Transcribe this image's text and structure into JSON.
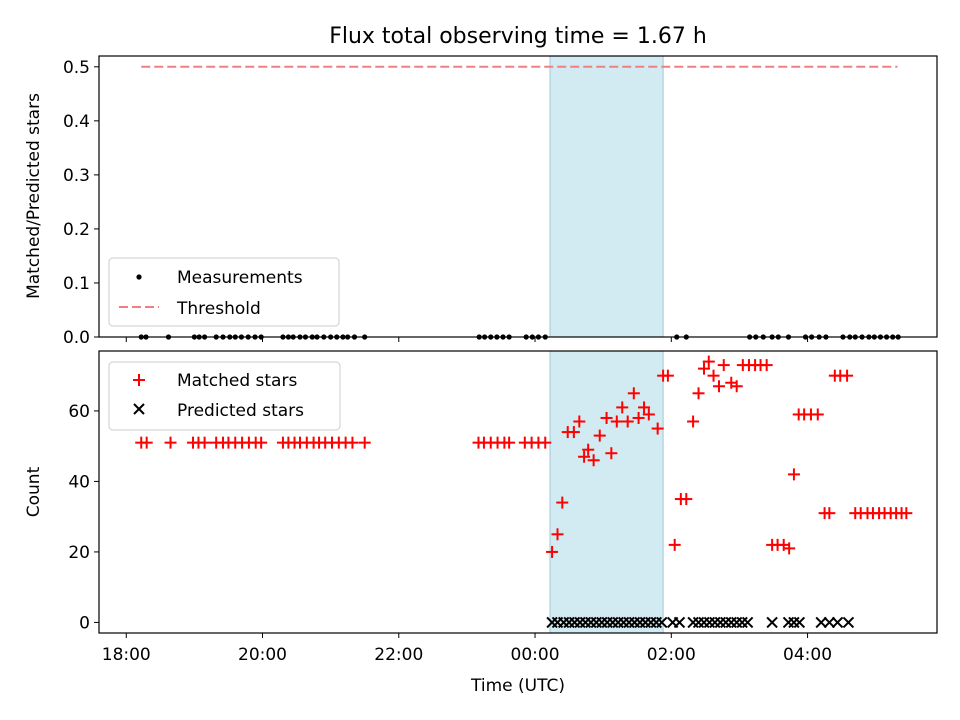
{
  "chart_data": {
    "type": "scatter",
    "title": "Flux total observing time = 1.67 h",
    "xlabel": "Time (UTC)",
    "x_unit": "hours since 18:00 UTC",
    "xlim": [
      -0.4,
      11.9
    ],
    "x_ticks": [
      {
        "value": 0,
        "label": "18:00"
      },
      {
        "value": 2,
        "label": "20:00"
      },
      {
        "value": 4,
        "label": "22:00"
      },
      {
        "value": 6,
        "label": "00:00"
      },
      {
        "value": 8,
        "label": "02:00"
      },
      {
        "value": 10,
        "label": "04:00"
      }
    ],
    "shaded_interval": {
      "start": 6.22,
      "end": 7.88,
      "color": "#add8e6"
    },
    "panels": [
      {
        "id": "top",
        "ylabel": "Matched/Predicted stars",
        "ylim": [
          0,
          0.52
        ],
        "y_ticks": [
          {
            "value": 0.0,
            "label": "0.0"
          },
          {
            "value": 0.1,
            "label": "0.1"
          },
          {
            "value": 0.2,
            "label": "0.2"
          },
          {
            "value": 0.3,
            "label": "0.3"
          },
          {
            "value": 0.4,
            "label": "0.4"
          },
          {
            "value": 0.5,
            "label": "0.5"
          }
        ],
        "threshold": {
          "name": "Threshold",
          "y": 0.5,
          "x_range": [
            0.22,
            11.32
          ],
          "color": "#f08080"
        },
        "series": [
          {
            "name": "Measurements",
            "marker": "dot",
            "color": "#000000",
            "x": [
              0.22,
              0.29,
              0.62,
              1.0,
              1.07,
              1.15,
              1.32,
              1.42,
              1.52,
              1.6,
              1.69,
              1.79,
              1.89,
              1.98,
              2.3,
              2.38,
              2.45,
              2.55,
              2.63,
              2.73,
              2.8,
              2.9,
              3.0,
              3.09,
              3.18,
              3.25,
              3.35,
              3.5,
              5.18,
              5.26,
              5.35,
              5.44,
              5.53,
              5.62,
              5.87,
              5.96,
              6.05,
              6.15,
              8.08,
              8.22,
              9.15,
              9.24,
              9.35,
              9.48,
              9.57,
              9.72,
              9.97,
              10.06,
              10.17,
              10.27,
              10.52,
              10.62,
              10.7,
              10.8,
              10.9,
              10.98,
              11.07,
              11.16,
              11.25,
              11.33
            ],
            "y_constant": 0
          }
        ],
        "legend": {
          "location": "lower-left",
          "entries": [
            {
              "label": "Measurements",
              "marker": "dot",
              "color": "#000000"
            },
            {
              "label": "Threshold",
              "marker": "dashed-line",
              "color": "#f08080"
            }
          ]
        }
      },
      {
        "id": "bottom",
        "ylabel": "Count",
        "ylim": [
          -3,
          77
        ],
        "y_ticks": [
          {
            "value": 0,
            "label": "0"
          },
          {
            "value": 20,
            "label": "20"
          },
          {
            "value": 40,
            "label": "40"
          },
          {
            "value": 60,
            "label": "60"
          }
        ],
        "series": [
          {
            "name": "Matched stars",
            "marker": "plus",
            "color": "#ff0000",
            "points": [
              [
                0.22,
                51
              ],
              [
                0.3,
                51
              ],
              [
                0.65,
                51
              ],
              [
                0.98,
                51
              ],
              [
                1.06,
                51
              ],
              [
                1.15,
                51
              ],
              [
                1.32,
                51
              ],
              [
                1.42,
                51
              ],
              [
                1.5,
                51
              ],
              [
                1.6,
                51
              ],
              [
                1.7,
                51
              ],
              [
                1.8,
                51
              ],
              [
                1.9,
                51
              ],
              [
                1.98,
                51
              ],
              [
                2.3,
                51
              ],
              [
                2.38,
                51
              ],
              [
                2.47,
                51
              ],
              [
                2.55,
                51
              ],
              [
                2.65,
                51
              ],
              [
                2.75,
                51
              ],
              [
                2.83,
                51
              ],
              [
                2.92,
                51
              ],
              [
                3.02,
                51
              ],
              [
                3.12,
                51
              ],
              [
                3.22,
                51
              ],
              [
                3.32,
                51
              ],
              [
                3.5,
                51
              ],
              [
                5.17,
                51
              ],
              [
                5.25,
                51
              ],
              [
                5.35,
                51
              ],
              [
                5.45,
                51
              ],
              [
                5.55,
                51
              ],
              [
                5.62,
                51
              ],
              [
                5.85,
                51
              ],
              [
                5.95,
                51
              ],
              [
                6.05,
                51
              ],
              [
                6.15,
                51
              ],
              [
                6.25,
                20
              ],
              [
                6.33,
                25
              ],
              [
                6.4,
                34
              ],
              [
                6.48,
                54
              ],
              [
                6.57,
                54
              ],
              [
                6.65,
                57
              ],
              [
                6.72,
                47
              ],
              [
                6.78,
                49
              ],
              [
                6.86,
                46
              ],
              [
                6.95,
                53
              ],
              [
                7.05,
                58
              ],
              [
                7.12,
                48
              ],
              [
                7.2,
                57
              ],
              [
                7.28,
                61
              ],
              [
                7.36,
                57
              ],
              [
                7.45,
                65
              ],
              [
                7.52,
                58
              ],
              [
                7.6,
                61
              ],
              [
                7.67,
                59
              ],
              [
                7.8,
                55
              ],
              [
                7.88,
                70
              ],
              [
                7.95,
                70
              ],
              [
                8.05,
                22
              ],
              [
                8.14,
                35
              ],
              [
                8.22,
                35
              ],
              [
                8.32,
                57
              ],
              [
                8.4,
                65
              ],
              [
                8.48,
                72
              ],
              [
                8.55,
                74
              ],
              [
                8.62,
                70
              ],
              [
                8.7,
                67
              ],
              [
                8.77,
                73
              ],
              [
                8.88,
                68
              ],
              [
                8.96,
                67
              ],
              [
                9.05,
                73
              ],
              [
                9.14,
                73
              ],
              [
                9.23,
                73
              ],
              [
                9.31,
                73
              ],
              [
                9.4,
                73
              ],
              [
                9.48,
                22
              ],
              [
                9.56,
                22
              ],
              [
                9.65,
                22
              ],
              [
                9.73,
                21
              ],
              [
                9.8,
                42
              ],
              [
                9.87,
                59
              ],
              [
                9.95,
                59
              ],
              [
                10.05,
                59
              ],
              [
                10.15,
                59
              ],
              [
                10.25,
                31
              ],
              [
                10.32,
                31
              ],
              [
                10.4,
                70
              ],
              [
                10.48,
                70
              ],
              [
                10.58,
                70
              ],
              [
                10.7,
                31
              ],
              [
                10.78,
                31
              ],
              [
                10.88,
                31
              ],
              [
                10.96,
                31
              ],
              [
                11.05,
                31
              ],
              [
                11.13,
                31
              ],
              [
                11.22,
                31
              ],
              [
                11.3,
                31
              ],
              [
                11.38,
                31
              ],
              [
                11.45,
                31
              ]
            ]
          },
          {
            "name": "Predicted stars",
            "marker": "x",
            "color": "#000000",
            "points": [
              [
                6.25,
                0
              ],
              [
                6.33,
                0
              ],
              [
                6.42,
                0
              ],
              [
                6.5,
                0
              ],
              [
                6.58,
                0
              ],
              [
                6.66,
                0
              ],
              [
                6.74,
                0
              ],
              [
                6.82,
                0
              ],
              [
                6.9,
                0
              ],
              [
                6.98,
                0
              ],
              [
                7.06,
                0
              ],
              [
                7.14,
                0
              ],
              [
                7.22,
                0
              ],
              [
                7.3,
                0
              ],
              [
                7.38,
                0
              ],
              [
                7.46,
                0
              ],
              [
                7.54,
                0
              ],
              [
                7.62,
                0
              ],
              [
                7.7,
                0
              ],
              [
                7.78,
                0
              ],
              [
                7.86,
                0
              ],
              [
                8.02,
                0
              ],
              [
                8.12,
                0
              ],
              [
                8.32,
                0
              ],
              [
                8.4,
                0
              ],
              [
                8.48,
                0
              ],
              [
                8.56,
                0
              ],
              [
                8.64,
                0
              ],
              [
                8.72,
                0
              ],
              [
                8.8,
                0
              ],
              [
                8.88,
                0
              ],
              [
                8.96,
                0
              ],
              [
                9.04,
                0
              ],
              [
                9.12,
                0
              ],
              [
                9.48,
                0
              ],
              [
                9.72,
                0
              ],
              [
                9.8,
                0
              ],
              [
                9.88,
                0
              ],
              [
                10.2,
                0
              ],
              [
                10.32,
                0
              ],
              [
                10.44,
                0
              ],
              [
                10.6,
                0
              ]
            ]
          }
        ],
        "legend": {
          "location": "upper-left",
          "entries": [
            {
              "label": "Matched stars",
              "marker": "plus",
              "color": "#ff0000"
            },
            {
              "label": "Predicted stars",
              "marker": "x",
              "color": "#000000"
            }
          ]
        }
      }
    ]
  }
}
